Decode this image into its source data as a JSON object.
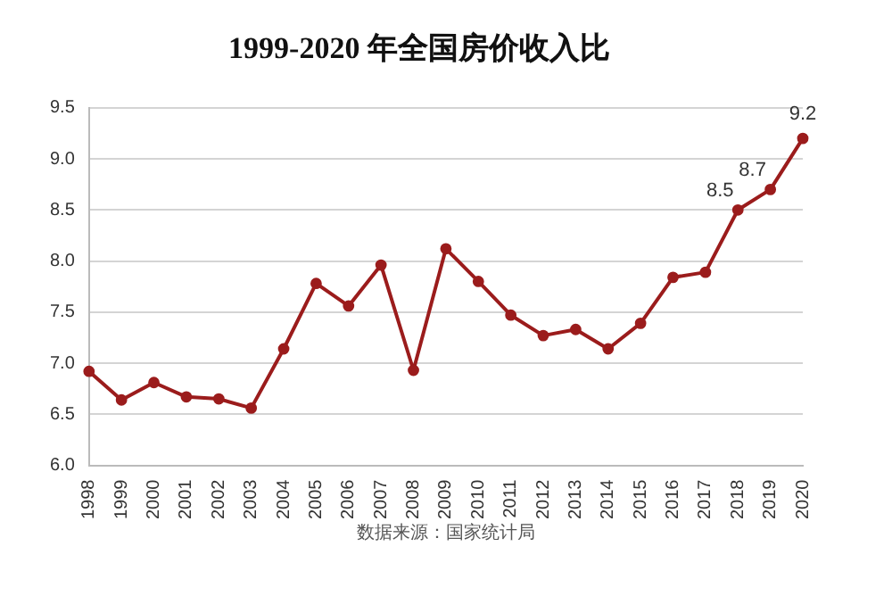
{
  "chart_data": {
    "type": "line",
    "title": "1999-2020 年全国房价收入比",
    "categories": [
      "1998",
      "1999",
      "2000",
      "2001",
      "2002",
      "2003",
      "2004",
      "2005",
      "2006",
      "2007",
      "2008",
      "2009",
      "2010",
      "2011",
      "2012",
      "2013",
      "2014",
      "2015",
      "2016",
      "2017",
      "2018",
      "2019",
      "2020"
    ],
    "series": [
      {
        "color": "#9b1c1c",
        "values": [
          6.92,
          6.64,
          6.81,
          6.67,
          6.65,
          6.56,
          7.14,
          7.78,
          7.56,
          7.96,
          6.93,
          8.12,
          7.8,
          7.47,
          7.27,
          7.33,
          7.14,
          7.39,
          7.84,
          7.89,
          8.5,
          8.7,
          9.2
        ],
        "value_labels": [
          null,
          null,
          null,
          null,
          null,
          null,
          null,
          null,
          null,
          null,
          null,
          null,
          null,
          null,
          null,
          null,
          null,
          null,
          null,
          null,
          "8.5",
          "8.7",
          "9.2"
        ]
      }
    ],
    "ylim": [
      6,
      9.5
    ],
    "yticks": [
      "6.0",
      "6.5",
      "7.0",
      "7.5",
      "8.0",
      "8.5",
      "9.0",
      "9.5"
    ],
    "grid": "y",
    "legend": false,
    "marker": "circle",
    "line_style": "solid",
    "annotations": [
      "数据来源：国家统计局"
    ]
  }
}
